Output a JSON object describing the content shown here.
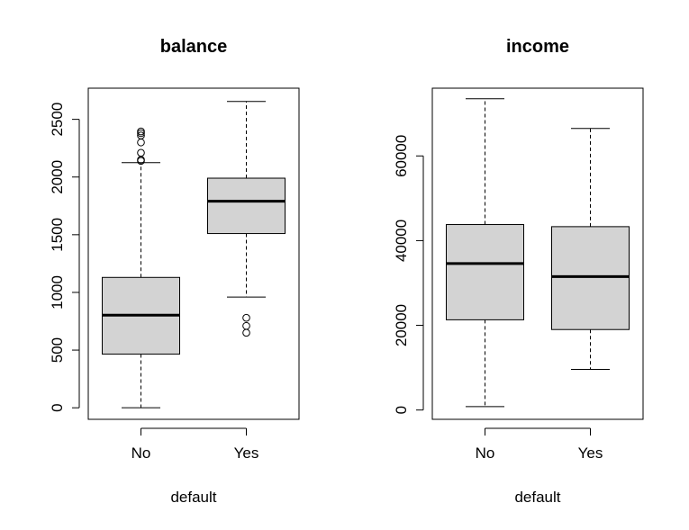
{
  "chart_data": [
    {
      "type": "box",
      "title": "balance",
      "xlabel": "default",
      "ylabel": "",
      "ylim": [
        -100,
        2770
      ],
      "yticks": [
        0,
        500,
        1000,
        1500,
        2000,
        2500
      ],
      "ytick_labels": [
        "0",
        "500",
        "1000",
        "1500",
        "2000",
        "2500"
      ],
      "categories": [
        "No",
        "Yes"
      ],
      "boxes": [
        {
          "name": "No",
          "whisker_low": 0,
          "q1": 465,
          "median": 803,
          "q3": 1130,
          "whisker_high": 2125,
          "outliers": [
            2140,
            2150,
            2210,
            2300,
            2360,
            2380,
            2395
          ]
        },
        {
          "name": "Yes",
          "whisker_low": 960,
          "q1": 1510,
          "median": 1790,
          "q3": 1990,
          "whisker_high": 2655,
          "outliers": [
            650,
            710,
            780
          ]
        }
      ],
      "fill_color": "#d3d3d3",
      "grid": false
    },
    {
      "type": "box",
      "title": "income",
      "xlabel": "default",
      "ylabel": "",
      "ylim": [
        -2200,
        76000
      ],
      "yticks": [
        0,
        20000,
        40000,
        60000
      ],
      "ytick_labels": [
        "0",
        "20000",
        "40000",
        "60000"
      ],
      "categories": [
        "No",
        "Yes"
      ],
      "boxes": [
        {
          "name": "No",
          "whisker_low": 800,
          "q1": 21300,
          "median": 34600,
          "q3": 43800,
          "whisker_high": 73500,
          "outliers": []
        },
        {
          "name": "Yes",
          "whisker_low": 9600,
          "q1": 19000,
          "median": 31500,
          "q3": 43300,
          "whisker_high": 66500,
          "outliers": []
        }
      ],
      "fill_color": "#d3d3d3",
      "grid": false
    }
  ]
}
